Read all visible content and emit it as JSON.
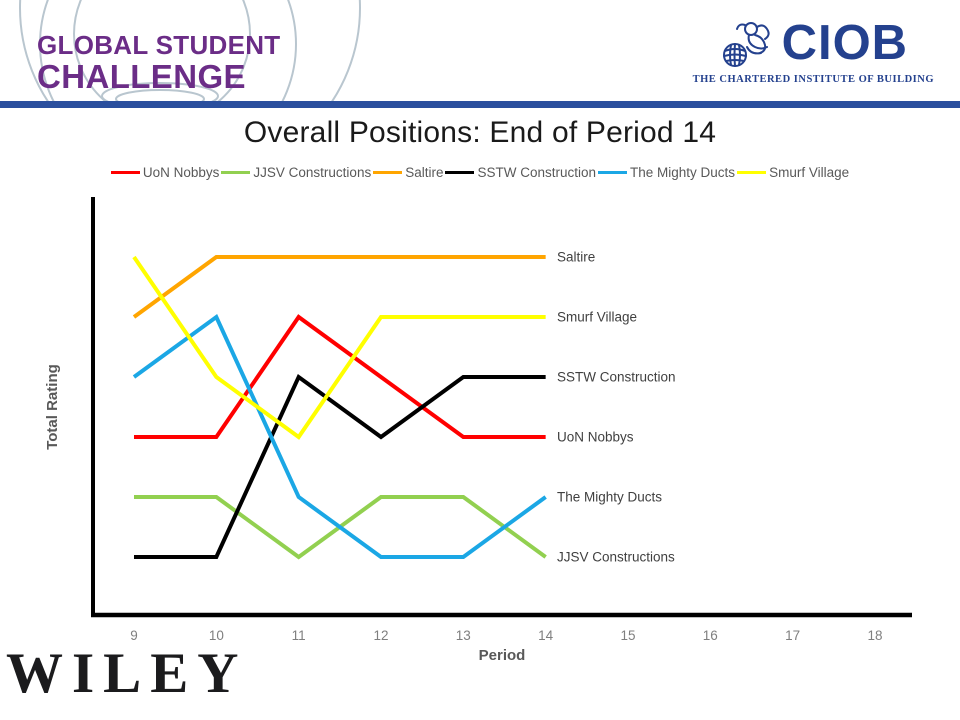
{
  "header": {
    "logo_left": {
      "line1": "GLOBAL STUDENT",
      "line2": "CHALLENGE"
    },
    "logo_right": {
      "acronym": "CIOB",
      "tagline": "THE CHARTERED INSTITUTE OF BUILDING"
    }
  },
  "colors": {
    "brand_purple": "#6b2d87",
    "brand_navy": "#24418e",
    "divider_blue": "#2a4f9e",
    "legend_text": "#595959",
    "tick_text": "#7f7f7f",
    "end_label_text": "#404040"
  },
  "chart_data": {
    "type": "line",
    "title": "Overall Positions: End of Period 14",
    "xlabel": "Period",
    "ylabel": "Total Rating",
    "x": [
      9,
      10,
      11,
      12,
      13,
      14
    ],
    "x_ticks": [
      9,
      10,
      11,
      12,
      13,
      14,
      15,
      16,
      17,
      18
    ],
    "y_axis_values_shown": false,
    "grid": false,
    "legend_position": "top",
    "position_scale_note": "bump chart of 6 teams; position 6 = top (best), 1 = bottom",
    "series": [
      {
        "name": "UoN Nobbys",
        "color": "#ff0000",
        "positions": [
          3,
          3,
          5,
          4,
          3,
          3
        ]
      },
      {
        "name": "JJSV Constructions",
        "color": "#92d050",
        "positions": [
          2,
          2,
          1,
          2,
          2,
          1
        ]
      },
      {
        "name": "Saltire",
        "color": "#ffa500",
        "positions": [
          5,
          6,
          6,
          6,
          6,
          6
        ]
      },
      {
        "name": "SSTW Construction",
        "color": "#000000",
        "positions": [
          1,
          1,
          4,
          3,
          4,
          4
        ]
      },
      {
        "name": "The Mighty Ducts",
        "color": "#1ba7e5",
        "positions": [
          4,
          5,
          2,
          1,
          1,
          2
        ]
      },
      {
        "name": "Smurf Village",
        "color": "#ffff00",
        "positions": [
          6,
          4,
          3,
          5,
          5,
          5
        ]
      }
    ],
    "end_labels_top_to_bottom": [
      "Saltire",
      "Smurf Village",
      "SSTW Construction",
      "UoN Nobbys",
      "The Mighty Ducts",
      "JJSV Constructions"
    ]
  },
  "footer": {
    "wiley_text": "WILEY"
  }
}
